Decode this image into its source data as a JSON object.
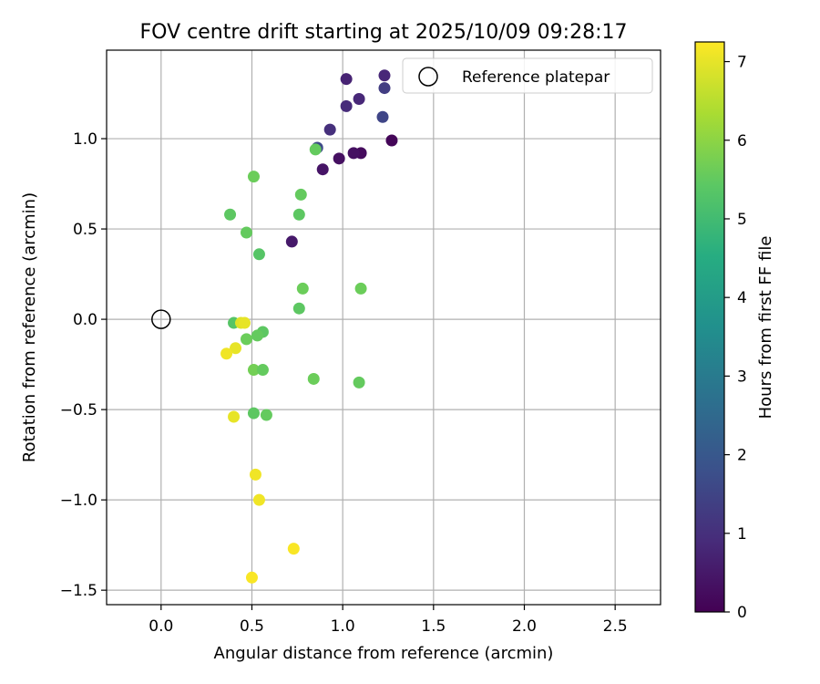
{
  "chart_data": {
    "type": "scatter",
    "title": "FOV centre drift starting at 2025/10/09 09:28:17",
    "xlabel": "Angular distance from reference (arcmin)",
    "ylabel": "Rotation from reference (arcmin)",
    "xlim": [
      -0.3,
      2.75
    ],
    "ylim": [
      -1.58,
      1.49
    ],
    "xticks": [
      0.0,
      0.5,
      1.0,
      1.5,
      2.0,
      2.5
    ],
    "xtick_labels": [
      "0.0",
      "0.5",
      "1.0",
      "1.5",
      "2.0",
      "2.5"
    ],
    "yticks": [
      -1.5,
      -1.0,
      -0.5,
      0.0,
      0.5,
      1.0
    ],
    "ytick_labels": [
      "−1.5",
      "−1.0",
      "−0.5",
      "0.0",
      "0.5",
      "1.0"
    ],
    "grid": true,
    "legend": {
      "position": "top-right",
      "entries": [
        "Reference platepar"
      ]
    },
    "reference_point": {
      "x": 0.0,
      "y": 0.0,
      "label": "Reference platepar"
    },
    "colorbar": {
      "label": "Hours from first FF file",
      "range": [
        0,
        7.25
      ],
      "ticks": [
        0,
        1,
        2,
        3,
        4,
        5,
        6,
        7
      ],
      "tick_labels": [
        "0",
        "1",
        "2",
        "3",
        "4",
        "5",
        "6",
        "7"
      ],
      "colormap": "viridis"
    },
    "points": [
      {
        "x": 1.27,
        "y": 0.99,
        "hours": 0.1
      },
      {
        "x": 1.1,
        "y": 0.92,
        "hours": 0.2
      },
      {
        "x": 1.06,
        "y": 0.92,
        "hours": 0.3
      },
      {
        "x": 0.98,
        "y": 0.89,
        "hours": 0.3
      },
      {
        "x": 0.89,
        "y": 0.83,
        "hours": 0.4
      },
      {
        "x": 0.72,
        "y": 0.43,
        "hours": 0.5
      },
      {
        "x": 1.02,
        "y": 1.33,
        "hours": 0.7
      },
      {
        "x": 1.23,
        "y": 1.35,
        "hours": 0.8
      },
      {
        "x": 1.09,
        "y": 1.22,
        "hours": 0.8
      },
      {
        "x": 1.02,
        "y": 1.18,
        "hours": 0.9
      },
      {
        "x": 0.93,
        "y": 1.05,
        "hours": 1.0
      },
      {
        "x": 1.23,
        "y": 1.28,
        "hours": 1.3
      },
      {
        "x": 1.22,
        "y": 1.12,
        "hours": 1.5
      },
      {
        "x": 0.86,
        "y": 0.95,
        "hours": 1.6
      },
      {
        "x": 0.85,
        "y": 0.94,
        "hours": 5.5
      },
      {
        "x": 0.51,
        "y": 0.79,
        "hours": 5.6
      },
      {
        "x": 0.77,
        "y": 0.69,
        "hours": 5.5
      },
      {
        "x": 0.38,
        "y": 0.58,
        "hours": 5.4
      },
      {
        "x": 0.76,
        "y": 0.58,
        "hours": 5.4
      },
      {
        "x": 0.47,
        "y": 0.48,
        "hours": 5.5
      },
      {
        "x": 0.54,
        "y": 0.36,
        "hours": 5.3
      },
      {
        "x": 0.78,
        "y": 0.17,
        "hours": 5.6
      },
      {
        "x": 1.1,
        "y": 0.17,
        "hours": 5.6
      },
      {
        "x": 0.76,
        "y": 0.06,
        "hours": 5.4
      },
      {
        "x": 0.4,
        "y": -0.02,
        "hours": 5.3
      },
      {
        "x": 0.56,
        "y": -0.07,
        "hours": 5.4
      },
      {
        "x": 0.53,
        "y": -0.09,
        "hours": 5.5
      },
      {
        "x": 0.47,
        "y": -0.11,
        "hours": 5.6
      },
      {
        "x": 0.51,
        "y": -0.28,
        "hours": 5.7
      },
      {
        "x": 0.56,
        "y": -0.28,
        "hours": 5.5
      },
      {
        "x": 0.84,
        "y": -0.33,
        "hours": 5.6
      },
      {
        "x": 1.09,
        "y": -0.35,
        "hours": 5.5
      },
      {
        "x": 0.51,
        "y": -0.52,
        "hours": 5.4
      },
      {
        "x": 0.58,
        "y": -0.53,
        "hours": 5.5
      },
      {
        "x": 0.44,
        "y": -0.02,
        "hours": 6.9
      },
      {
        "x": 0.46,
        "y": -0.02,
        "hours": 7.0
      },
      {
        "x": 0.41,
        "y": -0.16,
        "hours": 7.0
      },
      {
        "x": 0.36,
        "y": -0.19,
        "hours": 7.1
      },
      {
        "x": 0.4,
        "y": -0.54,
        "hours": 7.0
      },
      {
        "x": 0.52,
        "y": -0.86,
        "hours": 7.1
      },
      {
        "x": 0.54,
        "y": -1.0,
        "hours": 7.1
      },
      {
        "x": 0.73,
        "y": -1.27,
        "hours": 7.2
      },
      {
        "x": 0.5,
        "y": -1.43,
        "hours": 7.2
      }
    ]
  }
}
